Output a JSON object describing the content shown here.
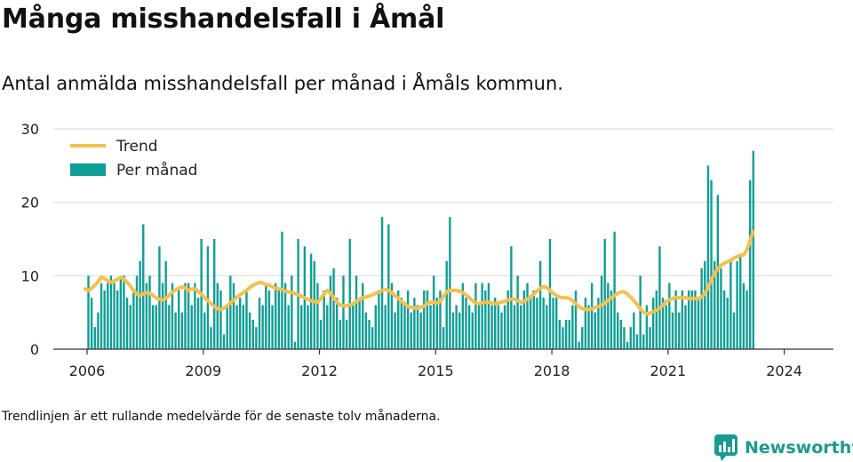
{
  "title": "Många misshandelsfall i Åmål",
  "subtitle": "Antal anmälda misshandelsfall per månad i Åmåls kommun.",
  "footnote": "Trendlinjen är ett rullande medelvärde för de senaste tolv månaderna.",
  "brand": {
    "name": "Newsworthy",
    "icon": "bar-chart-speech-bubble-icon"
  },
  "colors": {
    "bars": "#0f9e96",
    "trend": "#f5c04e",
    "grid": "#dddddd",
    "axis": "#333333",
    "brand": "#1b9a92"
  },
  "chart_data": {
    "type": "bar",
    "x_start": "2006-01",
    "xticks": [
      "2006",
      "2009",
      "2012",
      "2015",
      "2018",
      "2021",
      "2024"
    ],
    "yticks": [
      "0",
      "10",
      "20",
      "30"
    ],
    "ylim": [
      0,
      30
    ],
    "grid": "horizontal",
    "legend_position": "top-left",
    "series": [
      {
        "name": "Per månad",
        "type": "bar",
        "values": [
          10,
          7,
          3,
          5,
          9,
          8,
          9,
          10,
          9,
          8,
          10,
          10,
          7,
          6,
          8,
          10,
          12,
          17,
          9,
          10,
          6,
          6,
          14,
          9,
          12,
          6,
          9,
          5,
          8,
          5,
          9,
          9,
          6,
          9,
          7,
          15,
          5,
          14,
          3,
          15,
          9,
          8,
          2,
          6,
          10,
          9,
          6,
          7,
          6,
          8,
          5,
          4,
          3,
          7,
          6,
          9,
          8,
          6,
          9,
          8,
          16,
          9,
          6,
          10,
          1,
          15,
          6,
          14,
          6,
          13,
          12,
          9,
          4,
          8,
          6,
          10,
          11,
          7,
          4,
          10,
          4,
          15,
          6,
          10,
          7,
          9,
          5,
          4,
          3,
          6,
          8,
          18,
          6,
          17,
          9,
          5,
          8,
          7,
          6,
          8,
          5,
          7,
          6,
          5,
          8,
          8,
          6,
          10,
          7,
          8,
          3,
          12,
          18,
          5,
          6,
          5,
          9,
          7,
          6,
          5,
          9,
          6,
          9,
          8,
          9,
          6,
          7,
          6,
          5,
          6,
          8,
          14,
          6,
          10,
          6,
          8,
          9,
          7,
          8,
          7,
          12,
          7,
          6,
          15,
          7,
          7,
          4,
          3,
          4,
          4,
          6,
          8,
          1,
          3,
          7,
          6,
          9,
          5,
          7,
          10,
          15,
          9,
          8,
          16,
          5,
          4,
          3,
          1,
          3,
          5,
          2,
          10,
          2,
          6,
          3,
          7,
          8,
          14,
          7,
          6,
          9,
          5,
          8,
          5,
          8,
          6,
          8,
          8,
          8,
          7,
          11,
          12,
          25,
          23,
          12,
          21,
          11,
          8,
          7,
          12,
          5,
          12,
          13,
          9,
          8,
          23,
          27
        ]
      },
      {
        "name": "Trend",
        "type": "line",
        "values": [
          8.2,
          8.0,
          8.3,
          8.7,
          9.2,
          9.8,
          9.6,
          9.3,
          9.1,
          9.3,
          9.5,
          9.8,
          9.5,
          9.1,
          8.6,
          8.0,
          7.5,
          7.3,
          7.5,
          7.7,
          7.6,
          7.3,
          7.0,
          6.8,
          6.7,
          6.9,
          7.3,
          7.8,
          8.1,
          8.3,
          8.5,
          8.3,
          8.0,
          8.2,
          8.2,
          7.9,
          7.5,
          7.0,
          6.6,
          6.2,
          5.8,
          5.5,
          5.4,
          5.6,
          5.9,
          6.3,
          6.7,
          7.1,
          7.4,
          7.7,
          8.0,
          8.4,
          8.7,
          8.9,
          9.1,
          9.0,
          8.8,
          8.7,
          8.5,
          8.3,
          8.2,
          8.1,
          7.9,
          7.8,
          7.7,
          7.6,
          7.4,
          7.2,
          7.0,
          6.8,
          6.6,
          6.5,
          6.4,
          6.9,
          7.5,
          8.0,
          7.6,
          7.0,
          6.4,
          6.0,
          5.9,
          5.9,
          6.0,
          6.2,
          6.5,
          6.8,
          7.0,
          7.1,
          7.2,
          7.4,
          7.6,
          7.8,
          8.0,
          8.1,
          8.0,
          7.7,
          7.3,
          6.9,
          6.5,
          6.2,
          5.8,
          5.7,
          5.6,
          5.6,
          5.7,
          5.9,
          6.2,
          6.4,
          6.4,
          6.3,
          6.5,
          7.2,
          7.8,
          8.0,
          8.0,
          8.0,
          7.9,
          7.7,
          7.4,
          7.0,
          6.6,
          6.3,
          6.2,
          6.3,
          6.4,
          6.4,
          6.3,
          6.2,
          6.3,
          6.4,
          6.5,
          6.7,
          6.8,
          6.8,
          6.6,
          6.4,
          6.5,
          6.8,
          7.1,
          7.5,
          7.9,
          8.3,
          8.5,
          8.4,
          8.0,
          7.6,
          7.3,
          7.1,
          7.0,
          7.0,
          6.9,
          6.6,
          6.2,
          5.8,
          5.5,
          5.4,
          5.4,
          5.5,
          5.7,
          5.8,
          6.0,
          6.3,
          6.6,
          7.0,
          7.3,
          7.6,
          7.8,
          7.8,
          7.5,
          7.1,
          6.6,
          6.1,
          5.5,
          5.0,
          4.8,
          4.9,
          5.1,
          5.3,
          5.6,
          6.0,
          6.5,
          6.7,
          6.9,
          7.0,
          7.0,
          7.0,
          7.0,
          6.9,
          6.9,
          6.9,
          6.9,
          7.1,
          7.6,
          8.4,
          9.4,
          10.3,
          11.0,
          11.4,
          11.7,
          11.9,
          12.1,
          12.4,
          12.6,
          12.8,
          12.8,
          13.5,
          14.8,
          16.0
        ]
      }
    ]
  }
}
